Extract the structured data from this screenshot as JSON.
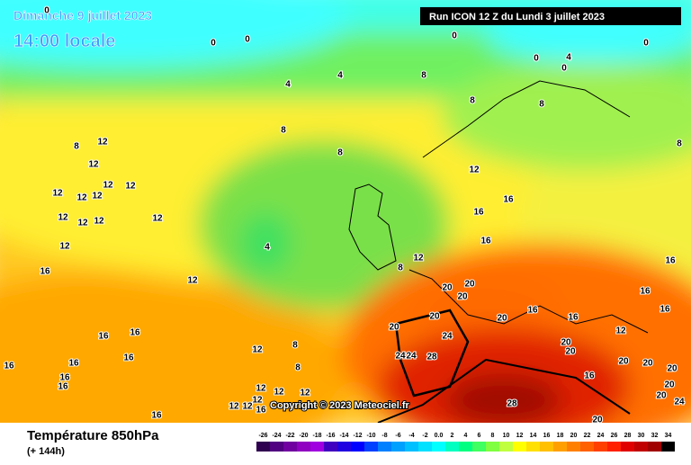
{
  "header": {
    "date": "Dimanche 9 juillet 2023",
    "time": "14:00 locale",
    "run": "Run ICON 12 Z du Lundi 3 juillet 2023"
  },
  "copyright": "Copyright © 2023 Meteociel.fr",
  "legend": {
    "title": "Température 850hPa",
    "subtitle": "(+ 144h)",
    "scale": [
      {
        "value": -26,
        "color": "#300050"
      },
      {
        "value": -24,
        "color": "#500080"
      },
      {
        "value": -22,
        "color": "#7000a0"
      },
      {
        "value": -20,
        "color": "#9000c0"
      },
      {
        "value": -18,
        "color": "#a000e0"
      },
      {
        "value": -16,
        "color": "#4000c0"
      },
      {
        "value": -14,
        "color": "#2000e0"
      },
      {
        "value": -12,
        "color": "#0000ff"
      },
      {
        "value": -10,
        "color": "#0040ff"
      },
      {
        "value": -8,
        "color": "#0080ff"
      },
      {
        "value": -6,
        "color": "#00a0ff"
      },
      {
        "value": -4,
        "color": "#00c0ff"
      },
      {
        "value": -2,
        "color": "#00e0ff"
      },
      {
        "value": {
          "value": 0,
          "label": "0.0"
        },
        "color": "#00ffff"
      },
      {
        "value": 2,
        "color": "#00ffc0"
      },
      {
        "value": 4,
        "color": "#00ff80"
      },
      {
        "value": 6,
        "color": "#40ff60"
      },
      {
        "value": 8,
        "color": "#80ff40"
      },
      {
        "value": 10,
        "color": "#c0ff40"
      },
      {
        "value": 12,
        "color": "#ffff00"
      },
      {
        "value": 14,
        "color": "#ffe000"
      },
      {
        "value": 16,
        "color": "#ffc000"
      },
      {
        "value": 18,
        "color": "#ffa000"
      },
      {
        "value": 20,
        "color": "#ff8000"
      },
      {
        "value": 22,
        "color": "#ff6000"
      },
      {
        "value": 24,
        "color": "#ff4000"
      },
      {
        "value": 26,
        "color": "#ff2000"
      },
      {
        "value": 28,
        "color": "#e00000"
      },
      {
        "value": 30,
        "color": "#c00000"
      },
      {
        "value": 32,
        "color": "#a00000"
      },
      {
        "value": 34,
        "color": "#000000"
      }
    ]
  },
  "contour_labels": [
    0,
    0,
    0,
    0,
    0,
    0,
    4,
    0,
    4,
    4,
    8,
    8,
    8,
    8,
    8,
    8,
    8,
    12,
    12,
    12,
    12,
    12,
    12,
    12,
    12,
    12,
    12,
    12,
    12,
    16,
    12,
    4,
    8,
    12,
    12,
    16,
    16,
    16,
    20,
    20,
    20,
    20,
    20,
    20,
    16,
    16,
    12,
    16,
    16,
    16,
    24,
    24,
    24,
    28,
    20,
    20,
    16,
    20,
    20,
    20,
    20,
    20,
    24,
    28,
    20,
    16,
    16,
    16,
    16,
    16,
    16,
    16,
    12,
    8,
    8,
    12,
    12,
    12,
    12,
    12,
    16,
    12,
    16
  ]
}
